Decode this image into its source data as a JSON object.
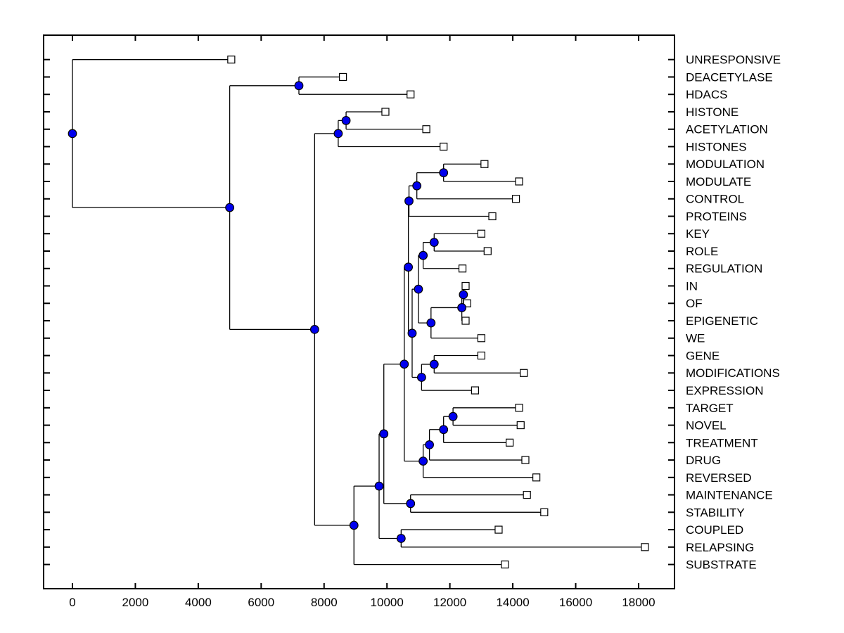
{
  "figure": {
    "background": "#ffffff",
    "colors": {
      "axis": "#000000",
      "branch": "#000000",
      "internal_node_fill": "#0000ee",
      "internal_node_edge": "#000000",
      "leaf_marker_fill": "#ffffff",
      "leaf_marker_edge": "#000000",
      "text": "#000000"
    }
  },
  "chart_data": {
    "type": "dendrogram",
    "subtype": "phylogenetic-tree-horizontal",
    "title": "",
    "xlabel": "",
    "ylabel": "",
    "grid": false,
    "x_axis": {
      "tick_values": [
        0,
        2000,
        4000,
        6000,
        8000,
        10000,
        12000,
        14000,
        16000,
        18000
      ],
      "tick_labels": [
        "0",
        "2000",
        "4000",
        "6000",
        "8000",
        "10000",
        "12000",
        "14000",
        "16000",
        "18000"
      ],
      "xlim": [
        -900,
        19100
      ]
    },
    "leaves": [
      {
        "label": "UNRESPONSIVE",
        "value": 5050
      },
      {
        "label": "DEACETYLASE",
        "value": 8600
      },
      {
        "label": "HDACS",
        "value": 10750
      },
      {
        "label": "HISTONE",
        "value": 9950
      },
      {
        "label": "ACETYLATION",
        "value": 11250
      },
      {
        "label": "HISTONES",
        "value": 11800
      },
      {
        "label": "MODULATION",
        "value": 13100
      },
      {
        "label": "MODULATE",
        "value": 14200
      },
      {
        "label": "CONTROL",
        "value": 14100
      },
      {
        "label": "PROTEINS",
        "value": 13350
      },
      {
        "label": "KEY",
        "value": 13000
      },
      {
        "label": "ROLE",
        "value": 13200
      },
      {
        "label": "REGULATION",
        "value": 12400
      },
      {
        "label": "IN",
        "value": 12500
      },
      {
        "label": "OF",
        "value": 12550
      },
      {
        "label": "EPIGENETIC",
        "value": 12500
      },
      {
        "label": "WE",
        "value": 13000
      },
      {
        "label": "GENE",
        "value": 13000
      },
      {
        "label": "MODIFICATIONS",
        "value": 14350
      },
      {
        "label": "EXPRESSION",
        "value": 12800
      },
      {
        "label": "TARGET",
        "value": 14200
      },
      {
        "label": "NOVEL",
        "value": 14250
      },
      {
        "label": "TREATMENT",
        "value": 13900
      },
      {
        "label": "DRUG",
        "value": 14400
      },
      {
        "label": "REVERSED",
        "value": 14750
      },
      {
        "label": "MAINTENANCE",
        "value": 14450
      },
      {
        "label": "STABILITY",
        "value": 15000
      },
      {
        "label": "COUPLED",
        "value": 13550
      },
      {
        "label": "RELAPSING",
        "value": 18200
      },
      {
        "label": "SUBSTRATE",
        "value": 13750
      }
    ],
    "internal_nodes": [
      {
        "id": "c1",
        "value": 11500,
        "children": [
          "KEY",
          "ROLE"
        ]
      },
      {
        "id": "c2",
        "value": 11150,
        "children": [
          "c1",
          "REGULATION"
        ]
      },
      {
        "id": "c5",
        "value": 12430,
        "children": [
          "IN",
          "OF"
        ]
      },
      {
        "id": "c6",
        "value": 12380,
        "children": [
          "c5",
          "EPIGENETIC"
        ]
      },
      {
        "id": "c7",
        "value": 11400,
        "children": [
          "c6",
          "WE"
        ]
      },
      {
        "id": "c4",
        "value": 11000,
        "children": [
          "c2",
          "c7"
        ]
      },
      {
        "id": "d3",
        "value": 11500,
        "children": [
          "GENE",
          "MODIFICATIONS"
        ]
      },
      {
        "id": "d2",
        "value": 11100,
        "children": [
          "d3",
          "EXPRESSION"
        ]
      },
      {
        "id": "d1",
        "value": 10800,
        "children": [
          "c4",
          "d2"
        ]
      },
      {
        "id": "b1",
        "value": 11800,
        "children": [
          "MODULATION",
          "MODULATE"
        ]
      },
      {
        "id": "b2",
        "value": 10950,
        "children": [
          "b1",
          "CONTROL"
        ]
      },
      {
        "id": "b3",
        "value": 10700,
        "children": [
          "b2",
          "PROTEINS"
        ]
      },
      {
        "id": "c3",
        "value": 10680,
        "children": [
          "b3",
          "d1"
        ]
      },
      {
        "id": "f1",
        "value": 12100,
        "children": [
          "TARGET",
          "NOVEL"
        ]
      },
      {
        "id": "f2",
        "value": 11800,
        "children": [
          "f1",
          "TREATMENT"
        ]
      },
      {
        "id": "f3",
        "value": 11350,
        "children": [
          "f2",
          "DRUG"
        ]
      },
      {
        "id": "f4",
        "value": 11150,
        "children": [
          "f3",
          "REVERSED"
        ]
      },
      {
        "id": "e1",
        "value": 10550,
        "children": [
          "c3",
          "f4"
        ]
      },
      {
        "id": "g1",
        "value": 10750,
        "children": [
          "MAINTENANCE",
          "STABILITY"
        ]
      },
      {
        "id": "p2",
        "value": 9900,
        "children": [
          "e1",
          "g1"
        ]
      },
      {
        "id": "g2",
        "value": 10450,
        "children": [
          "COUPLED",
          "RELAPSING"
        ]
      },
      {
        "id": "p3",
        "value": 9750,
        "children": [
          "p2",
          "g2"
        ]
      },
      {
        "id": "h1",
        "value": 8950,
        "children": [
          "p3",
          "SUBSTRATE"
        ]
      },
      {
        "id": "c0",
        "value": 8700,
        "children": [
          "HISTONE",
          "ACETYLATION"
        ]
      },
      {
        "id": "n6",
        "value": 8450,
        "children": [
          "c0",
          "HISTONES"
        ]
      },
      {
        "id": "n5",
        "value": 7700,
        "children": [
          "n6",
          "h1"
        ]
      },
      {
        "id": "n4",
        "value": 7200,
        "children": [
          "DEACETYLASE",
          "HDACS"
        ]
      },
      {
        "id": "n2",
        "value": 5000,
        "children": [
          "n4",
          "n5"
        ]
      },
      {
        "id": "root",
        "value": 0,
        "children": [
          "UNRESPONSIVE",
          "n2"
        ]
      }
    ]
  }
}
